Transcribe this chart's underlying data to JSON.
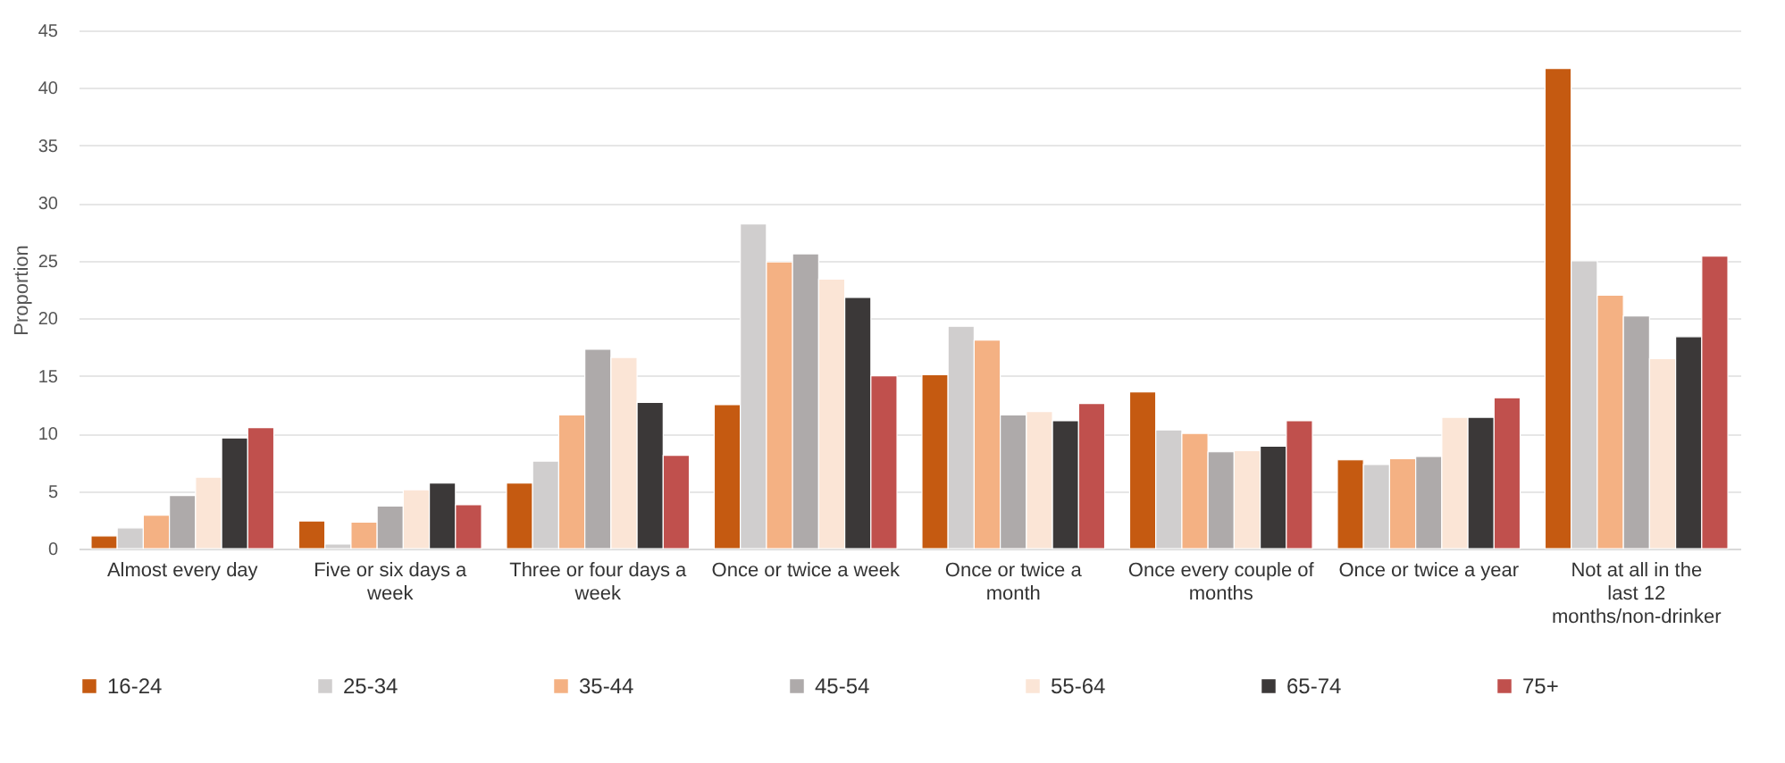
{
  "chart_data": {
    "type": "bar",
    "ylabel": "Proportion",
    "categories": [
      "Almost every day",
      "Five or six days a week",
      "Three or four days a week",
      "Once or twice a week",
      "Once or twice a month",
      "Once every couple of months",
      "Once or twice a year",
      "Not at all in the last 12 months/non-drinker"
    ],
    "series": [
      {
        "name": "16-24",
        "color": "#c55a11",
        "values": [
          1.1,
          2.4,
          5.7,
          12.5,
          15.1,
          13.6,
          7.7,
          41.7
        ]
      },
      {
        "name": "25-34",
        "color": "#d0cece",
        "values": [
          1.8,
          0.4,
          7.6,
          28.2,
          19.3,
          10.3,
          7.3,
          25.0
        ]
      },
      {
        "name": "35-44",
        "color": "#f4b183",
        "values": [
          2.9,
          2.3,
          11.6,
          24.9,
          18.1,
          10.0,
          7.8,
          22.0
        ]
      },
      {
        "name": "45-54",
        "color": "#aeaaaa",
        "values": [
          4.6,
          3.7,
          17.3,
          25.6,
          11.6,
          8.4,
          8.0,
          20.2
        ]
      },
      {
        "name": "55-64",
        "color": "#fbe5d6",
        "values": [
          6.2,
          5.1,
          16.6,
          23.4,
          11.9,
          8.5,
          11.4,
          16.5
        ]
      },
      {
        "name": "65-74",
        "color": "#3b3838",
        "values": [
          9.6,
          5.7,
          12.7,
          21.8,
          11.1,
          8.9,
          11.4,
          18.4
        ]
      },
      {
        "name": "75+",
        "color": "#c0504d",
        "values": [
          10.5,
          3.8,
          8.1,
          15.0,
          12.6,
          11.1,
          13.1,
          25.4
        ]
      }
    ],
    "ylim": [
      0,
      45
    ],
    "yticks": [
      0,
      5,
      10,
      15,
      20,
      25,
      30,
      35,
      40,
      45
    ],
    "grid": "y",
    "legend": "bottom"
  }
}
